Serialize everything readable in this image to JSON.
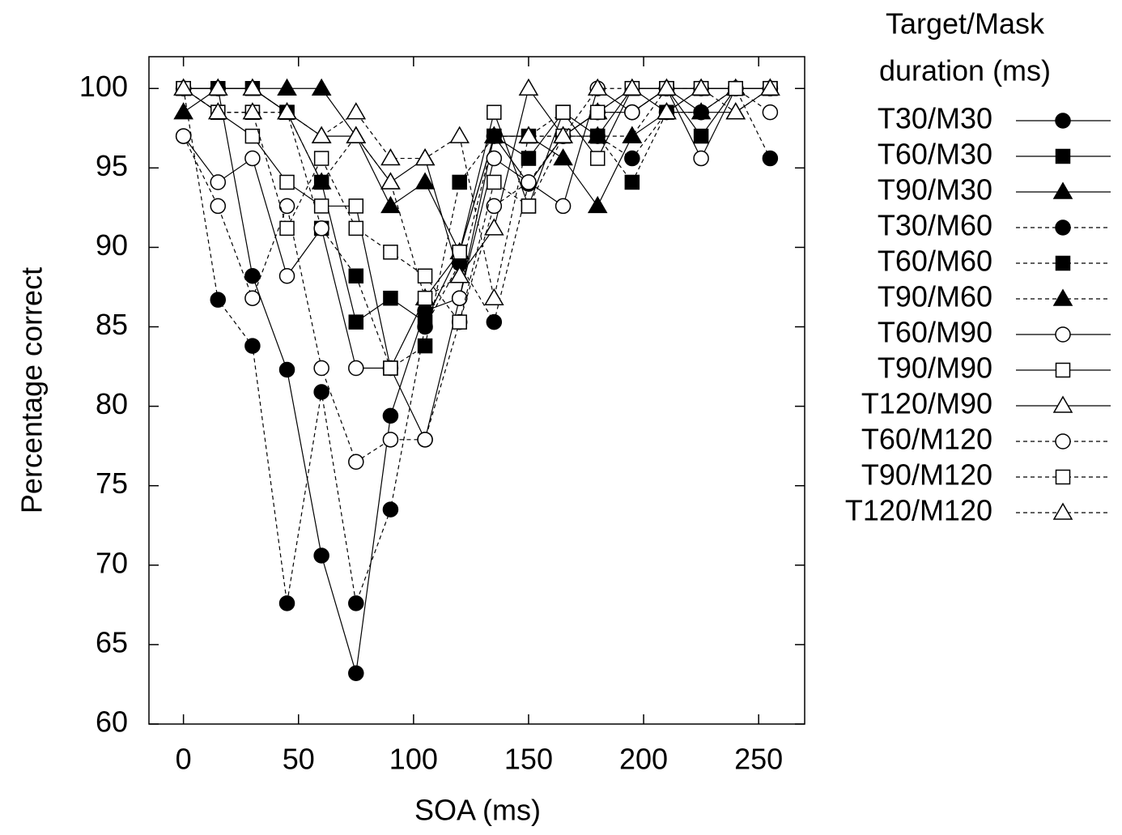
{
  "chart_data": {
    "type": "line",
    "x_label": "SOA (ms)",
    "y_label": "Percentage correct",
    "legend_title": [
      "Target/Mask",
      "duration (ms)"
    ],
    "xlim": [
      -15,
      270
    ],
    "ylim": [
      60,
      102
    ],
    "xticks": [
      0,
      50,
      100,
      150,
      200,
      250
    ],
    "yticks": [
      60,
      65,
      70,
      75,
      80,
      85,
      90,
      95,
      100
    ],
    "color": "#000000",
    "x": [
      0,
      15,
      30,
      45,
      60,
      75,
      90,
      105,
      120,
      135,
      150,
      165,
      180,
      195,
      210,
      225,
      240,
      255
    ],
    "series": [
      {
        "name": "T30/M30",
        "marker": "circle",
        "filled": true,
        "dashed": false,
        "values": [
          100,
          100,
          88.2,
          82.3,
          70.6,
          63.2,
          79.4,
          86,
          86.8,
          97,
          94,
          97,
          98.5,
          98.5,
          100,
          98.5,
          100,
          100
        ]
      },
      {
        "name": "T60/M30",
        "marker": "square",
        "filled": true,
        "dashed": false,
        "values": [
          100,
          100,
          100,
          98.5,
          94.1,
          85.3,
          86.8,
          85.3,
          89.7,
          97,
          95.6,
          98.5,
          97,
          100,
          100,
          97,
          100,
          100
        ]
      },
      {
        "name": "T90/M30",
        "marker": "triangle",
        "filled": true,
        "dashed": false,
        "values": [
          98.5,
          100,
          100,
          100,
          100,
          97,
          92.6,
          94.1,
          89.7,
          97,
          97,
          95.6,
          92.6,
          97,
          98.5,
          98.5,
          98.5,
          100
        ]
      },
      {
        "name": "T30/M60",
        "marker": "circle",
        "filled": true,
        "dashed": true,
        "values": [
          100,
          86.7,
          83.8,
          67.6,
          80.9,
          67.6,
          73.5,
          85,
          89,
          85.3,
          94,
          97,
          97,
          95.6,
          98.5,
          98.5,
          100,
          95.6
        ]
      },
      {
        "name": "T60/M60",
        "marker": "square",
        "filled": true,
        "dashed": true,
        "values": [
          100,
          98.5,
          98.5,
          98.5,
          91.2,
          88.2,
          82.4,
          83.8,
          94.1,
          97,
          97,
          98.5,
          97,
          94.1,
          98.5,
          100,
          100,
          100
        ]
      },
      {
        "name": "T90/M60",
        "marker": "triangle",
        "filled": true,
        "dashed": true,
        "values": [
          100,
          100,
          100,
          98.5,
          94.1,
          97,
          94.1,
          86.8,
          88.2,
          97,
          97,
          97,
          97,
          97,
          100,
          100,
          100,
          100
        ]
      },
      {
        "name": "T60/M90",
        "marker": "circle",
        "filled": false,
        "dashed": false,
        "values": [
          97,
          94.1,
          95.6,
          88.2,
          91.2,
          82.4,
          82.4,
          77.9,
          86.8,
          95.6,
          94.1,
          92.6,
          100,
          98.5,
          100,
          95.6,
          100,
          100
        ]
      },
      {
        "name": "T90/M90",
        "marker": "square",
        "filled": false,
        "dashed": false,
        "values": [
          100,
          98.5,
          97,
          94.1,
          92.6,
          92.6,
          82.4,
          86.8,
          89.7,
          98.5,
          92.6,
          98.5,
          95.6,
          100,
          100,
          100,
          100,
          100
        ]
      },
      {
        "name": "T120/M90",
        "marker": "triangle",
        "filled": false,
        "dashed": false,
        "values": [
          100,
          100,
          100,
          98.5,
          97,
          97,
          94.1,
          95.6,
          88.2,
          91.2,
          100,
          97,
          98.5,
          100,
          98.5,
          100,
          100,
          100
        ]
      },
      {
        "name": "T60/M120",
        "marker": "circle",
        "filled": false,
        "dashed": true,
        "values": [
          97,
          92.6,
          86.8,
          92.6,
          82.4,
          76.5,
          77.9,
          77.9,
          85.3,
          92.6,
          94.1,
          97,
          98.5,
          98.5,
          100,
          100,
          100,
          98.5
        ]
      },
      {
        "name": "T90/M120",
        "marker": "square",
        "filled": false,
        "dashed": true,
        "values": [
          100,
          98.5,
          98.5,
          91.2,
          95.6,
          91.2,
          89.7,
          88.2,
          85.3,
          94.1,
          92.6,
          97,
          98.5,
          100,
          100,
          100,
          100,
          100
        ]
      },
      {
        "name": "T120/M120",
        "marker": "triangle",
        "filled": false,
        "dashed": true,
        "values": [
          100,
          98.5,
          98.5,
          98.5,
          97,
          98.5,
          95.6,
          95.6,
          97,
          86.8,
          97,
          97,
          100,
          100,
          100,
          100,
          98.5,
          100
        ]
      }
    ]
  }
}
